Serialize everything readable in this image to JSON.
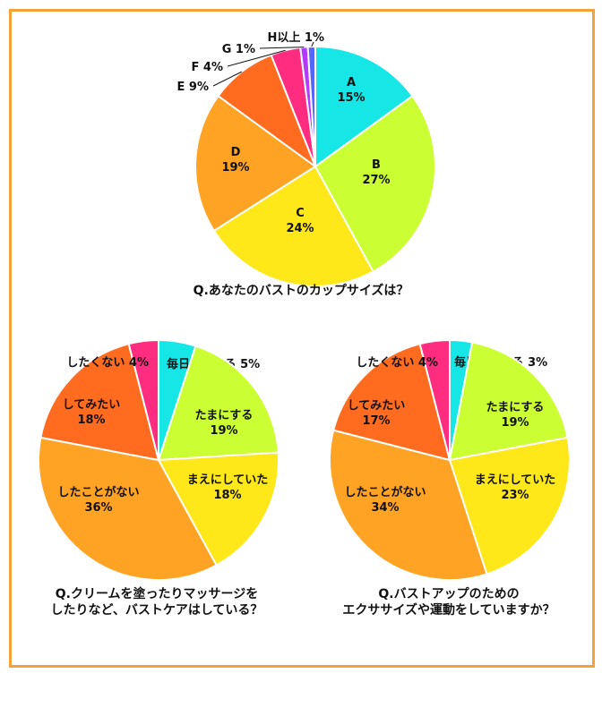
{
  "colors": {
    "frame": "#F5A13A",
    "A": "#16E6E6",
    "B": "#CCFF33",
    "C": "#FFE81A",
    "D": "#FFA324",
    "E": "#FF6B1F",
    "F": "#FF2C80",
    "G": "#B33BFF",
    "H": "#5566FF"
  },
  "chart_data": [
    {
      "type": "pie",
      "title": "Q.あなたのバストのカップサイズは？",
      "slices": [
        {
          "key": "A",
          "label": "A",
          "value": 15,
          "value_label": "15%",
          "color": "#16E6E6"
        },
        {
          "key": "B",
          "label": "B",
          "value": 27,
          "value_label": "27%",
          "color": "#CCFF33"
        },
        {
          "key": "C",
          "label": "C",
          "value": 24,
          "value_label": "24%",
          "color": "#FFE81A"
        },
        {
          "key": "D",
          "label": "D",
          "value": 19,
          "value_label": "19%",
          "color": "#FFA324"
        },
        {
          "key": "E",
          "label": "E",
          "value": 9,
          "value_label": "9%",
          "color": "#FF6B1F"
        },
        {
          "key": "F",
          "label": "F",
          "value": 4,
          "value_label": "4%",
          "color": "#FF2C80"
        },
        {
          "key": "G",
          "label": "G",
          "value": 1,
          "value_label": "1%",
          "color": "#B33BFF"
        },
        {
          "key": "H",
          "label": "H以上",
          "value": 1,
          "value_label": "1%",
          "color": "#5566FF"
        }
      ]
    },
    {
      "type": "pie",
      "title_lines": [
        "Q.クリームを塗ったりマッサージを",
        "したりなど、バストケアはしている？"
      ],
      "slices": [
        {
          "key": "every",
          "label": "毎日している",
          "value": 5,
          "value_label": "5%",
          "color": "#16E6E6"
        },
        {
          "key": "often",
          "label": "たまにする",
          "value": 19,
          "value_label": "19%",
          "color": "#CCFF33"
        },
        {
          "key": "before",
          "label": "まえにしていた",
          "value": 18,
          "value_label": "18%",
          "color": "#FFE81A"
        },
        {
          "key": "never",
          "label": "したことがない",
          "value": 36,
          "value_label": "36%",
          "color": "#FFA324"
        },
        {
          "key": "want",
          "label": "してみたい",
          "value": 18,
          "value_label": "18%",
          "color": "#FF6B1F"
        },
        {
          "key": "nowant",
          "label": "したくない",
          "value": 4,
          "value_label": "4%",
          "color": "#FF2C80"
        }
      ]
    },
    {
      "type": "pie",
      "title_lines": [
        "Q.バストアップのための",
        "エクササイズや運動をしていますか？"
      ],
      "slices": [
        {
          "key": "every",
          "label": "毎日している",
          "value": 3,
          "value_label": "3%",
          "color": "#16E6E6"
        },
        {
          "key": "often",
          "label": "たまにする",
          "value": 19,
          "value_label": "19%",
          "color": "#CCFF33"
        },
        {
          "key": "before",
          "label": "まえにしていた",
          "value": 23,
          "value_label": "23%",
          "color": "#FFE81A"
        },
        {
          "key": "never",
          "label": "したことがない",
          "value": 34,
          "value_label": "34%",
          "color": "#FFA324"
        },
        {
          "key": "want",
          "label": "してみたい",
          "value": 17,
          "value_label": "17%",
          "color": "#FF6B1F"
        },
        {
          "key": "nowant",
          "label": "したくない",
          "value": 4,
          "value_label": "4%",
          "color": "#FF2C80"
        }
      ]
    }
  ]
}
